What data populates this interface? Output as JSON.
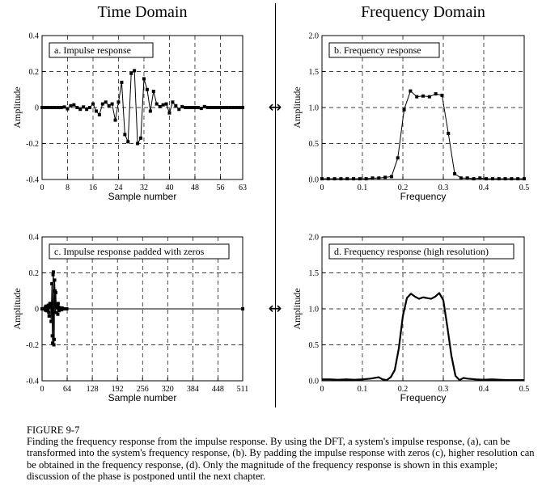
{
  "headings": {
    "time": "Time Domain",
    "frequency": "Frequency Domain"
  },
  "arrow_glyph": "↔",
  "caption": {
    "title": "FIGURE 9-7",
    "text": "Finding the frequency response from the impulse response. By using the DFT, a system's impulse response, (a), can be transformed into the system's frequency response, (b). By padding the impulse response with zeros (c), higher resolution can be obtained in the frequency response, (d). Only the magnitude of the frequency response is shown in this example; discussion of the phase is postponed until the next chapter."
  },
  "chart_data": [
    {
      "id": "a",
      "type": "line",
      "title": "a.  Impulse response",
      "xlabel": "Sample number",
      "ylabel": "Amplitude",
      "xlim": [
        0,
        63
      ],
      "ylim": [
        -0.4,
        0.4
      ],
      "xticks": [
        0,
        8,
        16,
        24,
        32,
        40,
        48,
        56,
        63
      ],
      "yticks": [
        -0.4,
        -0.2,
        0,
        0.2,
        0.4
      ],
      "ytick_labels": [
        "-0.4",
        "-0.2",
        "0",
        "0.2",
        "0.4"
      ],
      "grid": true,
      "markers": true,
      "series": [
        {
          "x": [
            0,
            1,
            2,
            3,
            4,
            5,
            6,
            7,
            8,
            9,
            10,
            11,
            12,
            13,
            14,
            15,
            16,
            17,
            18,
            19,
            20,
            21,
            22,
            23,
            24,
            25,
            26,
            27,
            28,
            29,
            30,
            31,
            32,
            33,
            34,
            35,
            36,
            37,
            38,
            39,
            40,
            41,
            42,
            43,
            44,
            45,
            46,
            47,
            48,
            49,
            50,
            51,
            52,
            53,
            54,
            55,
            56,
            57,
            58,
            59,
            60,
            61,
            62,
            63
          ],
          "y": [
            0,
            0,
            0,
            0,
            0,
            0,
            0,
            0.003,
            -0.007,
            0.01,
            0.015,
            0,
            -0.01,
            0.003,
            -0.01,
            0,
            0.02,
            -0.02,
            -0.04,
            0.02,
            0.03,
            0.01,
            0.02,
            -0.07,
            0.03,
            0.14,
            -0.15,
            -0.19,
            0.19,
            0.205,
            -0.2,
            -0.17,
            0.16,
            0.1,
            -0.02,
            0.09,
            0.02,
            0.005,
            0.015,
            0.02,
            -0.03,
            0.03,
            0.01,
            -0.01,
            0.005,
            0,
            0,
            0,
            0,
            0,
            -0.005,
            0.005,
            0,
            0,
            0,
            0,
            0,
            0,
            0,
            0,
            0,
            0,
            0,
            0
          ]
        }
      ]
    },
    {
      "id": "b",
      "type": "line",
      "title": "b.  Frequency response",
      "xlabel": "Frequency",
      "ylabel": "Amplitude",
      "xlim": [
        0,
        0.5
      ],
      "ylim": [
        0,
        2.0
      ],
      "xticks": [
        0,
        0.1,
        0.2,
        0.3,
        0.4,
        0.5
      ],
      "xtick_labels": [
        "0",
        "0.1",
        "0.2",
        "0.3",
        "0.4",
        "0.5"
      ],
      "yticks": [
        0,
        0.5,
        1.0,
        1.5,
        2.0
      ],
      "ytick_labels": [
        "0.0",
        "0.5",
        "1.0",
        "1.5",
        "2.0"
      ],
      "grid": true,
      "markers": true,
      "series": [
        {
          "x": [
            0,
            0.015625,
            0.03125,
            0.046875,
            0.0625,
            0.078125,
            0.09375,
            0.109375,
            0.125,
            0.140625,
            0.15625,
            0.171875,
            0.1875,
            0.203125,
            0.21875,
            0.234375,
            0.25,
            0.265625,
            0.28125,
            0.296875,
            0.3125,
            0.328125,
            0.34375,
            0.359375,
            0.375,
            0.390625,
            0.40625,
            0.421875,
            0.4375,
            0.453125,
            0.46875,
            0.484375,
            0.5
          ],
          "y": [
            0.01,
            0.01,
            0.01,
            0.01,
            0.01,
            0.01,
            0.01,
            0.01,
            0.02,
            0.02,
            0.03,
            0.04,
            0.3,
            0.97,
            1.23,
            1.15,
            1.16,
            1.15,
            1.19,
            1.17,
            0.64,
            0.08,
            0.02,
            0.02,
            0.01,
            0.02,
            0.01,
            0.01,
            0.01,
            0.01,
            0.01,
            0.01,
            0.01
          ]
        }
      ]
    },
    {
      "id": "c",
      "type": "line",
      "title": "c.  Impulse response padded with zeros",
      "xlabel": "Sample number",
      "ylabel": "Amplitude",
      "xlim": [
        0,
        511
      ],
      "ylim": [
        -0.4,
        0.4
      ],
      "xticks": [
        0,
        64,
        128,
        192,
        256,
        320,
        384,
        448,
        511
      ],
      "yticks": [
        -0.4,
        -0.2,
        0,
        0.2,
        0.4
      ],
      "ytick_labels": [
        "-0.4",
        "-0.2",
        "0",
        "0.2",
        "0.4"
      ],
      "grid": true,
      "markers": true,
      "series": [
        {
          "x": [
            0,
            1,
            2,
            3,
            4,
            5,
            6,
            7,
            8,
            9,
            10,
            11,
            12,
            13,
            14,
            15,
            16,
            17,
            18,
            19,
            20,
            21,
            22,
            23,
            24,
            25,
            26,
            27,
            28,
            29,
            30,
            31,
            32,
            33,
            34,
            35,
            36,
            37,
            38,
            39,
            40,
            41,
            42,
            43,
            44,
            45,
            46,
            47,
            48,
            49,
            50,
            51,
            52,
            53,
            54,
            55,
            56,
            57,
            58,
            59,
            60,
            61,
            62,
            63,
            511
          ],
          "y": [
            0,
            0,
            0,
            0,
            0,
            0,
            0,
            0.003,
            -0.007,
            0.01,
            0.015,
            0,
            -0.01,
            0.003,
            -0.01,
            0,
            0.02,
            -0.02,
            -0.04,
            0.02,
            0.03,
            0.01,
            0.02,
            -0.07,
            0.03,
            0.14,
            -0.15,
            -0.19,
            0.19,
            0.205,
            -0.2,
            -0.17,
            0.16,
            0.1,
            -0.02,
            0.09,
            0.02,
            0.005,
            0.015,
            0.02,
            -0.03,
            0.03,
            0.01,
            -0.01,
            0.005,
            0,
            0,
            0,
            0,
            0,
            -0.005,
            0.005,
            0,
            0,
            0,
            0,
            0,
            0,
            0,
            0,
            0,
            0,
            0,
            0,
            0
          ]
        }
      ]
    },
    {
      "id": "d",
      "type": "line",
      "title": "d.  Frequency response (high resolution)",
      "xlabel": "Frequency",
      "ylabel": "Amplitude",
      "xlim": [
        0,
        0.5
      ],
      "ylim": [
        0,
        2.0
      ],
      "xticks": [
        0,
        0.1,
        0.2,
        0.3,
        0.4,
        0.5
      ],
      "xtick_labels": [
        "0",
        "0.1",
        "0.2",
        "0.3",
        "0.4",
        "0.5"
      ],
      "yticks": [
        0,
        0.5,
        1.0,
        1.5,
        2.0
      ],
      "ytick_labels": [
        "0.0",
        "0.5",
        "1.0",
        "1.5",
        "2.0"
      ],
      "grid": true,
      "markers": false,
      "series": [
        {
          "x": [
            0,
            0.02,
            0.04,
            0.06,
            0.08,
            0.1,
            0.12,
            0.14,
            0.15,
            0.16,
            0.17,
            0.18,
            0.19,
            0.2,
            0.21,
            0.22,
            0.23,
            0.24,
            0.25,
            0.26,
            0.27,
            0.28,
            0.29,
            0.3,
            0.31,
            0.32,
            0.33,
            0.34,
            0.35,
            0.36,
            0.38,
            0.4,
            0.42,
            0.44,
            0.46,
            0.48,
            0.5
          ],
          "y": [
            0.02,
            0.02,
            0.015,
            0.02,
            0.015,
            0.02,
            0.03,
            0.05,
            0.02,
            0.01,
            0.05,
            0.15,
            0.45,
            0.9,
            1.15,
            1.21,
            1.17,
            1.14,
            1.16,
            1.15,
            1.14,
            1.17,
            1.22,
            1.12,
            0.75,
            0.35,
            0.07,
            0.01,
            0.04,
            0.03,
            0.02,
            0.015,
            0.02,
            0.015,
            0.01,
            0.01,
            0.01
          ]
        }
      ]
    }
  ]
}
